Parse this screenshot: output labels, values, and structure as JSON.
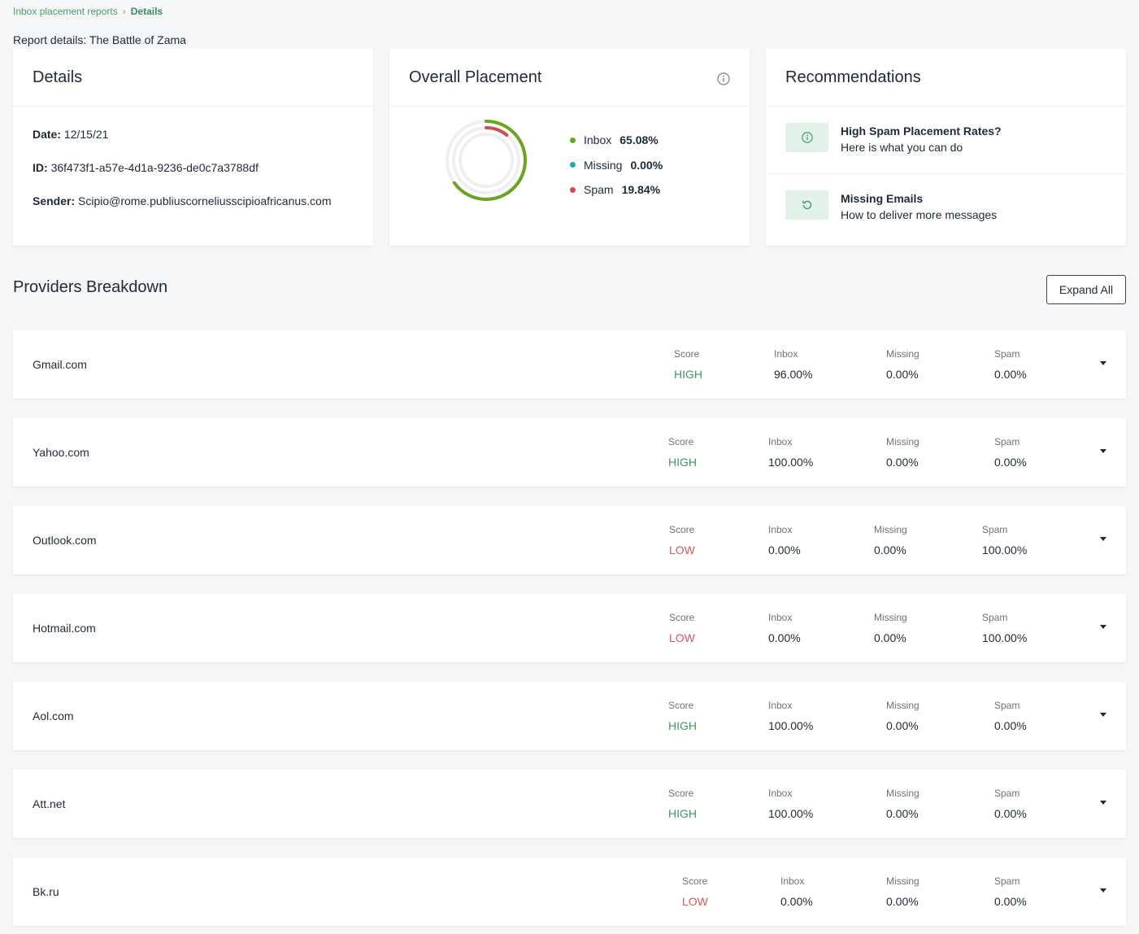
{
  "breadcrumb": {
    "parent": "Inbox placement reports",
    "separator": "›",
    "current": "Details"
  },
  "report_title": "Report details: The Battle of Zama",
  "details": {
    "title": "Details",
    "date_label": "Date:",
    "date_value": "12/15/21",
    "id_label": "ID:",
    "id_value": "36f473f1-a57e-4d1a-9236-de0c7a3788df",
    "sender_label": "Sender:",
    "sender_value": "Scipio@rome.publiuscorneliusscipioafricanus.com"
  },
  "placement": {
    "title": "Overall Placement",
    "inbox_label": "Inbox",
    "inbox_value": "65.08%",
    "inbox_fraction": 0.6508,
    "missing_label": "Missing",
    "missing_value": "0.00%",
    "missing_fraction": 0.0,
    "spam_label": "Spam",
    "spam_value": "19.84%",
    "spam_fraction": 0.1984,
    "colors": {
      "inbox": "#6aa51f",
      "missing": "#1ea5c8",
      "spam": "#d34a4a"
    }
  },
  "recommendations": {
    "title": "Recommendations",
    "items": [
      {
        "title": "High Spam Placement Rates?",
        "subtitle": "Here is what you can do",
        "icon": "info-icon"
      },
      {
        "title": "Missing Emails",
        "subtitle": "How to deliver more messages",
        "icon": "refresh-icon"
      }
    ]
  },
  "providers_title": "Providers Breakdown",
  "expand_all_label": "Expand All",
  "metric_headers": {
    "score": "Score",
    "inbox": "Inbox",
    "missing": "Missing",
    "spam": "Spam"
  },
  "providers": [
    {
      "name": "Gmail.com",
      "score": "HIGH",
      "inbox": "96.00%",
      "missing": "0.00%",
      "spam": "0.00%"
    },
    {
      "name": "Yahoo.com",
      "score": "HIGH",
      "inbox": "100.00%",
      "missing": "0.00%",
      "spam": "0.00%"
    },
    {
      "name": "Outlook.com",
      "score": "LOW",
      "inbox": "0.00%",
      "missing": "0.00%",
      "spam": "100.00%"
    },
    {
      "name": "Hotmail.com",
      "score": "LOW",
      "inbox": "0.00%",
      "missing": "0.00%",
      "spam": "100.00%"
    },
    {
      "name": "Aol.com",
      "score": "HIGH",
      "inbox": "100.00%",
      "missing": "0.00%",
      "spam": "0.00%"
    },
    {
      "name": "Att.net",
      "score": "HIGH",
      "inbox": "100.00%",
      "missing": "0.00%",
      "spam": "0.00%"
    },
    {
      "name": "Bk.ru",
      "score": "LOW",
      "inbox": "0.00%",
      "missing": "0.00%",
      "spam": "0.00%"
    }
  ]
}
